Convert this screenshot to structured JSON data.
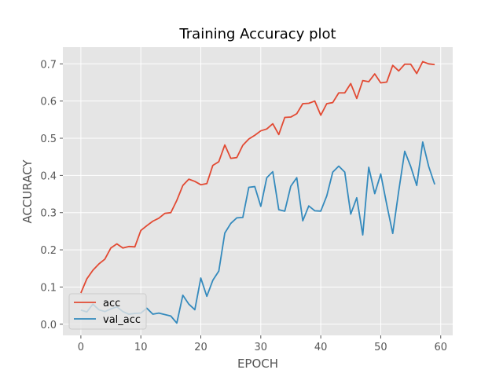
{
  "chart_data": {
    "type": "line",
    "title": "Training Accuracy plot",
    "xlabel": "EPOCH",
    "ylabel": "ACCURACY",
    "xlim": [
      -3,
      62
    ],
    "ylim": [
      -0.03,
      0.745
    ],
    "xticks": [
      0,
      10,
      20,
      30,
      40,
      50,
      60
    ],
    "yticks": [
      0.0,
      0.1,
      0.2,
      0.3,
      0.4,
      0.5,
      0.6,
      0.7
    ],
    "grid": true,
    "legend_position": "lower-left",
    "x": [
      0,
      1,
      2,
      3,
      4,
      5,
      6,
      7,
      8,
      9,
      10,
      11,
      12,
      13,
      14,
      15,
      16,
      17,
      18,
      19,
      20,
      21,
      22,
      23,
      24,
      25,
      26,
      27,
      28,
      29,
      30,
      31,
      32,
      33,
      34,
      35,
      36,
      37,
      38,
      39,
      40,
      41,
      42,
      43,
      44,
      45,
      46,
      47,
      48,
      49,
      50,
      51,
      52,
      53,
      54,
      55,
      56,
      57,
      58,
      59
    ],
    "series": [
      {
        "name": "acc",
        "color": "#E24A33",
        "values": [
          0.084,
          0.122,
          0.145,
          0.162,
          0.175,
          0.205,
          0.216,
          0.205,
          0.209,
          0.208,
          0.252,
          0.265,
          0.277,
          0.285,
          0.298,
          0.3,
          0.333,
          0.373,
          0.39,
          0.384,
          0.375,
          0.378,
          0.427,
          0.437,
          0.482,
          0.446,
          0.448,
          0.481,
          0.498,
          0.508,
          0.52,
          0.525,
          0.539,
          0.51,
          0.556,
          0.557,
          0.566,
          0.593,
          0.594,
          0.6,
          0.562,
          0.593,
          0.596,
          0.622,
          0.622,
          0.647,
          0.607,
          0.655,
          0.652,
          0.673,
          0.649,
          0.651,
          0.696,
          0.681,
          0.699,
          0.699,
          0.674,
          0.706,
          0.7,
          0.698
        ]
      },
      {
        "name": "val_acc",
        "color": "#348ABD",
        "values": [
          0.038,
          0.033,
          0.054,
          0.039,
          0.034,
          0.041,
          0.047,
          0.034,
          0.027,
          0.029,
          0.03,
          0.043,
          0.027,
          0.03,
          0.026,
          0.022,
          0.003,
          0.078,
          0.054,
          0.039,
          0.124,
          0.075,
          0.118,
          0.143,
          0.245,
          0.271,
          0.286,
          0.287,
          0.368,
          0.37,
          0.317,
          0.394,
          0.41,
          0.308,
          0.304,
          0.371,
          0.394,
          0.278,
          0.318,
          0.305,
          0.304,
          0.345,
          0.409,
          0.425,
          0.409,
          0.296,
          0.34,
          0.24,
          0.422,
          0.351,
          0.404,
          0.322,
          0.244,
          0.358,
          0.465,
          0.424,
          0.373,
          0.49,
          0.424,
          0.376
        ]
      }
    ]
  }
}
